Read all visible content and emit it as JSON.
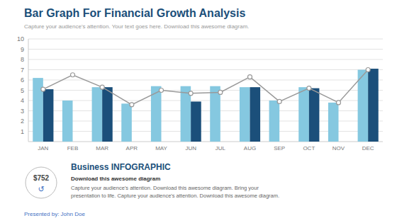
{
  "chart_data": {
    "type": "bar",
    "title": "Bar Graph For Financial Growth Analysis",
    "subtitle": "Capture your audience's attention. Your text goes here. Download this awesome diagram.",
    "categories": [
      "JAN",
      "FEB",
      "MAR",
      "APR",
      "MAY",
      "JUN",
      "JUL",
      "AUG",
      "SEP",
      "OCT",
      "NOV",
      "DEC"
    ],
    "series": [
      {
        "color": "#85C8E0",
        "values": [
          6.2,
          4.0,
          5.3,
          3.7,
          5.4,
          5.4,
          5.4,
          5.3,
          4.0,
          5.3,
          3.8,
          7.0
        ]
      },
      {
        "color": "#1B4F7A",
        "values": [
          5.1,
          null,
          5.3,
          null,
          null,
          3.9,
          null,
          5.3,
          null,
          5.2,
          null,
          7.1
        ]
      },
      {
        "type": "line",
        "color": "#999999",
        "marker": "circle",
        "values": [
          5.1,
          6.5,
          5.3,
          3.6,
          5.0,
          4.7,
          4.8,
          6.3,
          3.9,
          5.2,
          3.8,
          7.0
        ]
      }
    ],
    "ylim": [
      0,
      10
    ],
    "yticks": [
      1,
      2,
      3,
      4,
      5,
      6,
      7,
      8,
      9,
      10
    ],
    "grid": true,
    "annotations": [
      "$752",
      "↺",
      "Business INFOGRAPHIC",
      "Download this awesome diagram",
      "Capture your audience's attention.  Download this awesome diagram. Bring your",
      "presentation to life.  Capture your audience's attention.  Download this awesome diagram.",
      "Presented by: John Doe"
    ]
  }
}
